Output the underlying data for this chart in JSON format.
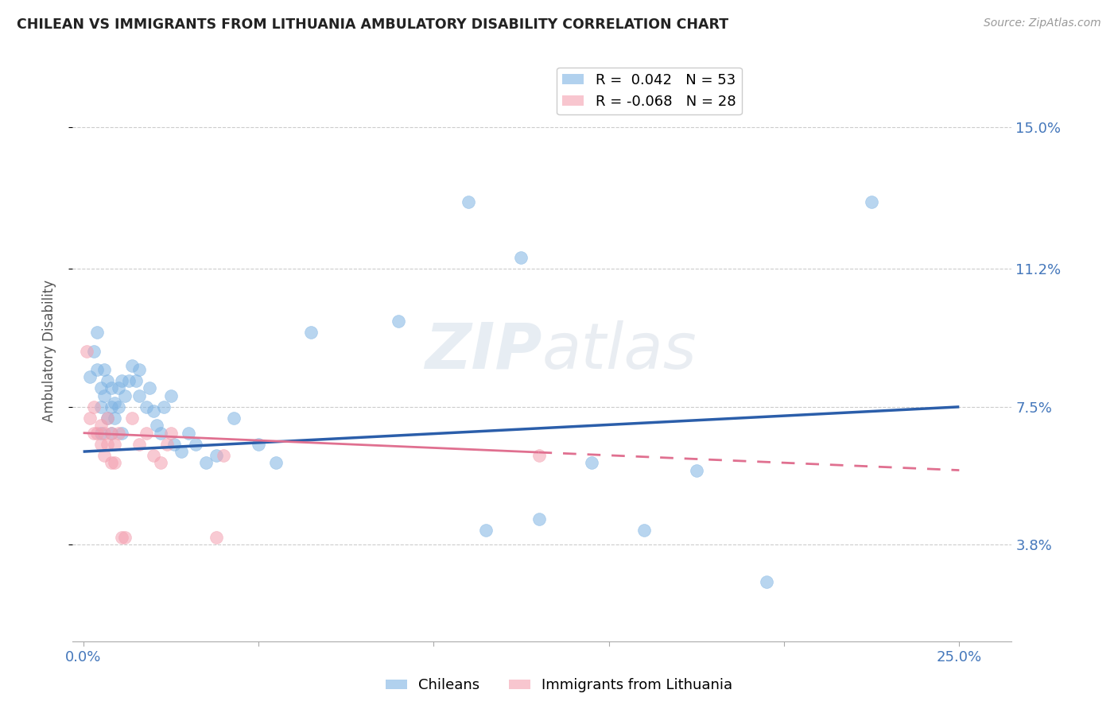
{
  "title": "CHILEAN VS IMMIGRANTS FROM LITHUANIA AMBULATORY DISABILITY CORRELATION CHART",
  "source": "Source: ZipAtlas.com",
  "ylabel": "Ambulatory Disability",
  "xlim": [
    -0.003,
    0.265
  ],
  "ylim": [
    0.012,
    0.168
  ],
  "x_tick_pos": [
    0.0,
    0.05,
    0.1,
    0.15,
    0.2,
    0.25
  ],
  "x_tick_labels": [
    "0.0%",
    "",
    "",
    "",
    "",
    "25.0%"
  ],
  "y_tick_pos": [
    0.038,
    0.075,
    0.112,
    0.15
  ],
  "y_tick_labels": [
    "3.8%",
    "7.5%",
    "11.2%",
    "15.0%"
  ],
  "chilean_R": 0.042,
  "chilean_N": 53,
  "immigrant_R": -0.068,
  "immigrant_N": 28,
  "blue_color": "#7EB3E3",
  "pink_color": "#F4A0B0",
  "trend_blue": "#2B5EAA",
  "trend_pink": "#E07090",
  "watermark": "ZIPatlas",
  "chileans_x": [
    0.002,
    0.003,
    0.004,
    0.004,
    0.005,
    0.005,
    0.005,
    0.006,
    0.006,
    0.007,
    0.007,
    0.008,
    0.008,
    0.008,
    0.009,
    0.009,
    0.01,
    0.01,
    0.011,
    0.011,
    0.012,
    0.013,
    0.014,
    0.015,
    0.016,
    0.016,
    0.018,
    0.019,
    0.02,
    0.021,
    0.022,
    0.023,
    0.025,
    0.026,
    0.028,
    0.03,
    0.032,
    0.035,
    0.038,
    0.043,
    0.05,
    0.055,
    0.065,
    0.09,
    0.11,
    0.115,
    0.125,
    0.13,
    0.145,
    0.16,
    0.175,
    0.195,
    0.225
  ],
  "chileans_y": [
    0.083,
    0.09,
    0.095,
    0.085,
    0.075,
    0.08,
    0.068,
    0.085,
    0.078,
    0.082,
    0.072,
    0.075,
    0.08,
    0.068,
    0.076,
    0.072,
    0.08,
    0.075,
    0.082,
    0.068,
    0.078,
    0.082,
    0.086,
    0.082,
    0.085,
    0.078,
    0.075,
    0.08,
    0.074,
    0.07,
    0.068,
    0.075,
    0.078,
    0.065,
    0.063,
    0.068,
    0.065,
    0.06,
    0.062,
    0.072,
    0.065,
    0.06,
    0.095,
    0.098,
    0.13,
    0.042,
    0.115,
    0.045,
    0.06,
    0.042,
    0.058,
    0.028,
    0.13
  ],
  "immigrants_x": [
    0.001,
    0.002,
    0.003,
    0.003,
    0.004,
    0.005,
    0.005,
    0.006,
    0.006,
    0.007,
    0.007,
    0.008,
    0.008,
    0.009,
    0.009,
    0.01,
    0.011,
    0.012,
    0.014,
    0.016,
    0.018,
    0.02,
    0.022,
    0.024,
    0.025,
    0.038,
    0.04,
    0.13
  ],
  "immigrants_y": [
    0.09,
    0.072,
    0.068,
    0.075,
    0.068,
    0.065,
    0.07,
    0.062,
    0.068,
    0.065,
    0.072,
    0.06,
    0.068,
    0.065,
    0.06,
    0.068,
    0.04,
    0.04,
    0.072,
    0.065,
    0.068,
    0.062,
    0.06,
    0.065,
    0.068,
    0.04,
    0.062,
    0.062
  ],
  "blue_trend_x0": 0.0,
  "blue_trend_y0": 0.063,
  "blue_trend_x1": 0.25,
  "blue_trend_y1": 0.075,
  "pink_trend_x0": 0.0,
  "pink_trend_y0": 0.068,
  "pink_trend_x1": 0.25,
  "pink_trend_y1": 0.058
}
